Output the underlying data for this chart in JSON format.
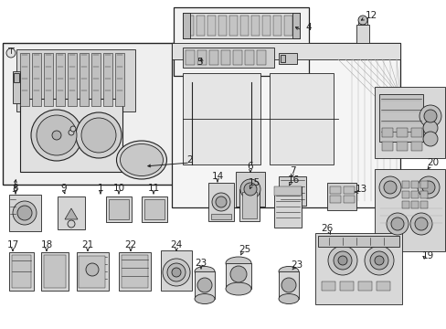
{
  "bg_color": "#ffffff",
  "line_color": "#222222",
  "fig_width": 4.89,
  "fig_height": 3.6,
  "dpi": 100,
  "gray_light": "#e8e8e8",
  "gray_mid": "#cccccc",
  "gray_dark": "#aaaaaa",
  "gray_fill": "#d8d8d8",
  "white": "#ffffff",
  "font_size": 6.5,
  "label_font_size": 7.5
}
